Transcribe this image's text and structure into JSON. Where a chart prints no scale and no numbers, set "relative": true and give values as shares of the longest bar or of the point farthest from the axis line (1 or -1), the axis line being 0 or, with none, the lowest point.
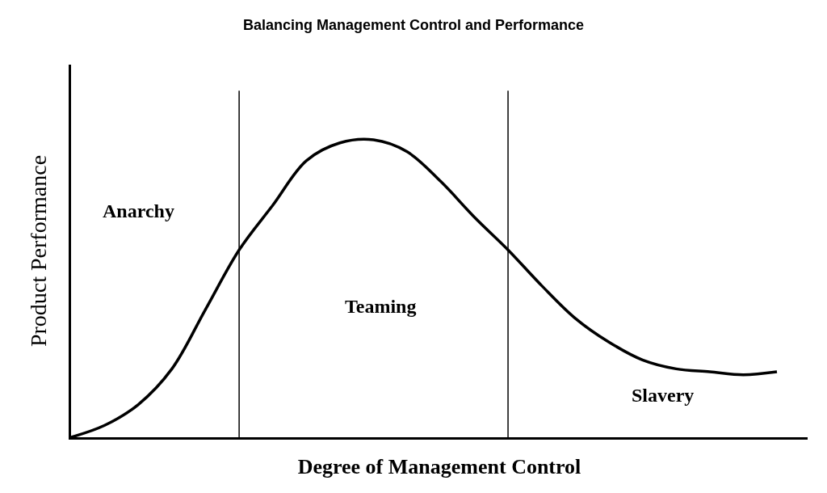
{
  "chart_data": {
    "type": "line",
    "title": "Balancing Management Control and Performance",
    "xlabel": "Degree of Management Control",
    "ylabel": "Product Performance",
    "relative": true,
    "categories": [
      null,
      null,
      null,
      null,
      null,
      null,
      null,
      null,
      null,
      null,
      null,
      null,
      null,
      null,
      null,
      null,
      null,
      null,
      null,
      null,
      null,
      null
    ],
    "series": [
      {
        "color": "#000000",
        "values": [
          0,
          0.04,
          0.11,
          0.23,
          0.43,
          0.63,
          0.78,
          0.93,
          0.99,
          1,
          0.96,
          0.86,
          0.74,
          0.63,
          0.51,
          0.4,
          0.32,
          0.26,
          0.23,
          0.22,
          0.21,
          0.22
        ]
      }
    ],
    "annotations": [
      "Anarchy",
      "Teaming",
      "Slavery"
    ],
    "legend": false,
    "marker": "none",
    "line_style": "solid",
    "tick_labels": false
  }
}
